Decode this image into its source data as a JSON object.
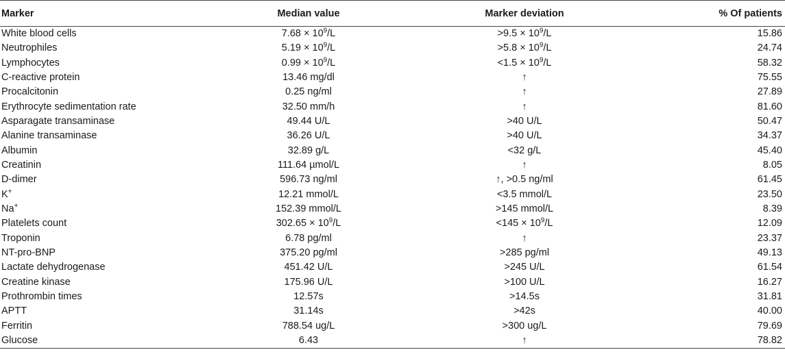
{
  "headers": {
    "marker": "Marker",
    "median": "Median value",
    "deviation": "Marker deviation",
    "percent": "% Of patients"
  },
  "rows": [
    {
      "marker": "White blood cells",
      "median": "7.68 × 10<sup>9</sup>/L",
      "deviation": ">9.5 × 10<sup>9</sup>/L",
      "percent": "15.86"
    },
    {
      "marker": "Neutrophiles",
      "median": "5.19 × 10<sup>9</sup>/L",
      "deviation": ">5.8 × 10<sup>9</sup>/L",
      "percent": "24.74"
    },
    {
      "marker": "Lymphocytes",
      "median": "0.99 × 10<sup>9</sup>/L",
      "deviation": "<1.5 × 10<sup>9</sup>/L",
      "percent": "58.32"
    },
    {
      "marker": "C-reactive protein",
      "median": "13.46 mg/dl",
      "deviation": "↑",
      "percent": "75.55"
    },
    {
      "marker": "Procalcitonin",
      "median": "0.25 ng/ml",
      "deviation": "↑",
      "percent": "27.89"
    },
    {
      "marker": "Erythrocyte sedimentation rate",
      "median": "32.50 mm/h",
      "deviation": "↑",
      "percent": "81.60"
    },
    {
      "marker": "Asparagate transaminase",
      "median": "49.44 U/L",
      "deviation": ">40 U/L",
      "percent": "50.47"
    },
    {
      "marker": "Alanine transaminase",
      "median": "36.26 U/L",
      "deviation": ">40 U/L",
      "percent": "34.37"
    },
    {
      "marker": "Albumin",
      "median": "32.89 g/L",
      "deviation": "<32 g/L",
      "percent": "45.40"
    },
    {
      "marker": "Creatinin",
      "median": "111.64 µmol/L",
      "deviation": "↑",
      "percent": "8.05"
    },
    {
      "marker": "D-dimer",
      "median": "596.73 ng/ml",
      "deviation": "↑, >0.5 ng/ml",
      "percent": "61.45"
    },
    {
      "marker": "K<sup>+</sup>",
      "median": "12.21 mmol/L",
      "deviation": "<3.5 mmol/L",
      "percent": "23.50"
    },
    {
      "marker": "Na<sup>+</sup>",
      "median": "152.39 mmol/L",
      "deviation": ">145 mmol/L",
      "percent": "8.39"
    },
    {
      "marker": "Platelets count",
      "median": "302.65 × 10<sup>9</sup>/L",
      "deviation": "<145 × 10<sup>9</sup>/L",
      "percent": "12.09"
    },
    {
      "marker": "Troponin",
      "median": "6.78 pg/ml",
      "deviation": "↑",
      "percent": "23.37"
    },
    {
      "marker": "NT-pro-BNP",
      "median": "375.20 pg/ml",
      "deviation": ">285 pg/ml",
      "percent": "49.13"
    },
    {
      "marker": "Lactate dehydrogenase",
      "median": "451.42 U/L",
      "deviation": ">245 U/L",
      "percent": "61.54"
    },
    {
      "marker": "Creatine kinase",
      "median": "175.96 U/L",
      "deviation": ">100 U/L",
      "percent": "16.27"
    },
    {
      "marker": "Prothrombin times",
      "median": "12.57s",
      "deviation": ">14.5s",
      "percent": "31.81"
    },
    {
      "marker": "APTT",
      "median": "31.14s",
      "deviation": ">42s",
      "percent": "40.00"
    },
    {
      "marker": "Ferritin",
      "median": "788.54 ug/L",
      "deviation": ">300 ug/L",
      "percent": "79.69"
    },
    {
      "marker": "Glucose",
      "median": "6.43",
      "deviation": "↑",
      "percent": "78.82"
    }
  ]
}
